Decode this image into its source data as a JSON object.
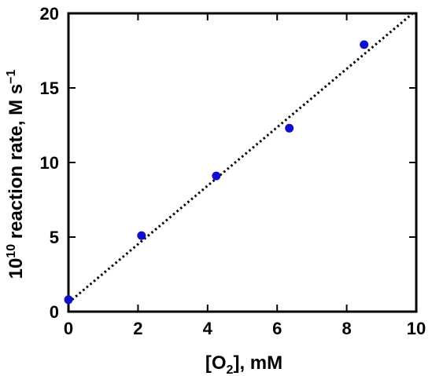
{
  "chart_data": {
    "type": "scatter",
    "xlabel": {
      "before": "[O",
      "sub": "2",
      "after": "], mM"
    },
    "ylabel": {
      "base": "10",
      "exp": "10",
      "rest": " reaction rate,  M s",
      "unit_exp": "−1"
    },
    "xlim": [
      0,
      10
    ],
    "ylim": [
      0,
      20
    ],
    "xticks": [
      0,
      2,
      4,
      6,
      8,
      10
    ],
    "yticks": [
      0,
      5,
      10,
      15,
      20
    ],
    "xticklabels": [
      "0",
      "2",
      "4",
      "6",
      "8",
      "10"
    ],
    "yticklabels": [
      "0",
      "5",
      "10",
      "15",
      "20"
    ],
    "grid": false,
    "points": [
      {
        "x": 0.0,
        "y": 0.8
      },
      {
        "x": 2.1,
        "y": 5.1
      },
      {
        "x": 4.25,
        "y": 9.1
      },
      {
        "x": 6.35,
        "y": 12.3
      },
      {
        "x": 8.5,
        "y": 17.9
      }
    ],
    "fit_line": {
      "x": [
        0,
        10
      ],
      "y": [
        0.6,
        20.2
      ],
      "style": "dotted"
    },
    "colors": {
      "points": "#1010cc",
      "line": "#000000",
      "axes": "#000000"
    }
  }
}
